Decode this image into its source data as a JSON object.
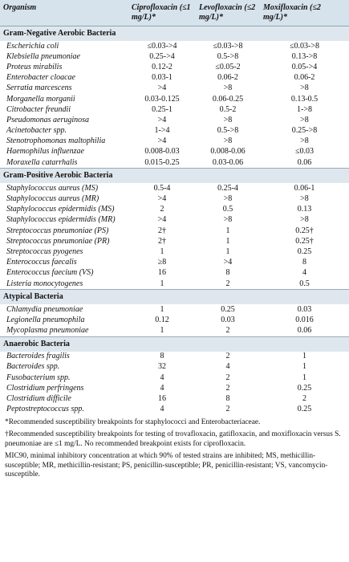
{
  "table": {
    "header": [
      "Organism",
      "Ciprofloxacin (≤1 mg/L)*",
      "Levofloxacin (≤2 mg/L)*",
      "Moxifloxacin (≤2 mg/L)*"
    ],
    "sections": [
      {
        "title": "Gram-Negative Aerobic Bacteria",
        "rows": [
          [
            "Escherichia coli",
            "≤0.03->4",
            "≤0.03->8",
            "≤0.03->8"
          ],
          [
            "Klebsiella pneumoniae",
            "0.25->4",
            "0.5->8",
            "0.13->8"
          ],
          [
            "Proteus mirabilis",
            "0.12-2",
            "≤0.05-2",
            "0.05->4"
          ],
          [
            "Enterobacter cloacae",
            "0.03-1",
            "0.06-2",
            "0.06-2"
          ],
          [
            "Serratia marcescens",
            ">4",
            ">8",
            ">8"
          ],
          [
            "Morganella morganii",
            "0.03-0.125",
            "0.06-0.25",
            "0.13-0.5"
          ],
          [
            "Citrobacter freundii",
            "0.25-1",
            "0.5-2",
            "1->8"
          ],
          [
            "Pseudomonas aeruginosa",
            ">4",
            ">8",
            ">8"
          ],
          [
            "Acinetobacter spp.",
            "1->4",
            "0.5->8",
            "0.25->8"
          ],
          [
            "Stenotrophomonas maltophilia",
            ">4",
            ">8",
            ">8"
          ],
          [
            "Haemophilus influenzae",
            "0.008-0.03",
            "0.008-0.06",
            "≤0.03"
          ],
          [
            "Moraxella catarrhalis",
            "0.015-0.25",
            "0.03-0.06",
            "0.06"
          ]
        ]
      },
      {
        "title": "Gram-Positive Aerobic Bacteria",
        "rows": [
          [
            "Staphylococcus aureus (MS)",
            "0.5-4",
            "0.25-4",
            "0.06-1"
          ],
          [
            "Staphylococcus aureus (MR)",
            ">4",
            ">8",
            ">8"
          ],
          [
            "Staphylococcus epidermidis (MS)",
            "2",
            "0.5",
            "0.13"
          ],
          [
            "Staphylococcus epidermidis (MR)",
            ">4",
            ">8",
            ">8"
          ],
          [
            "Streptococcus pneumoniae (PS)",
            "2†",
            "1",
            "0.25†"
          ],
          [
            "Streptococcus pneumoniae (PR)",
            "2†",
            "1",
            "0.25†"
          ],
          [
            "Streptococcus pyogenes",
            "1",
            "1",
            "0.25"
          ],
          [
            "Enterococcus faecalis",
            "≥8",
            ">4",
            "8"
          ],
          [
            "Enterococcus faecium (VS)",
            "16",
            "8",
            "4"
          ],
          [
            "Listeria monocytogenes",
            "1",
            "2",
            "0.5"
          ]
        ]
      },
      {
        "title": "Atypical Bacteria",
        "rows": [
          [
            "Chlamydia pneumoniae",
            "1",
            "0.25",
            "0.03"
          ],
          [
            "Legionella pneumophila",
            "0.12",
            "0.03",
            "0.016"
          ],
          [
            "Mycoplasma pneumoniae",
            "1",
            "2",
            "0.06"
          ]
        ]
      },
      {
        "title": "Anaerobic Bacteria",
        "rows": [
          [
            "Bacteroides fragilis",
            "8",
            "2",
            "1"
          ],
          [
            "Bacteroides spp.",
            "32",
            "4",
            "1"
          ],
          [
            "Fusobacterium spp.",
            "4",
            "2",
            "1"
          ],
          [
            "Clostridium perfringens",
            "4",
            "2",
            "0.25"
          ],
          [
            "Clostridium difficile",
            "16",
            "8",
            "2"
          ],
          [
            "Peptostreptococcus spp.",
            "4",
            "2",
            "0.25"
          ]
        ]
      }
    ]
  },
  "footnotes": [
    "*Recommended susceptibility breakpoints for staphylococci and Enterobacteriaceae.",
    "†Recommended susceptibility breakpoints for testing of trovafloxacin, gatifloxacin, and moxifloxacin versus S. pneumoniae are ≤1 mg/L. No recommended breakpoint exists for ciprofloxacin.",
    "MIC90, minimal inhibitory concentration at which 90% of tested strains are inhibited; MS, methicillin-susceptible; MR, methicillin-resistant; PS, penicillin-susceptible; PR, penicillin-resistant; VS, vancomycin-susceptible."
  ]
}
